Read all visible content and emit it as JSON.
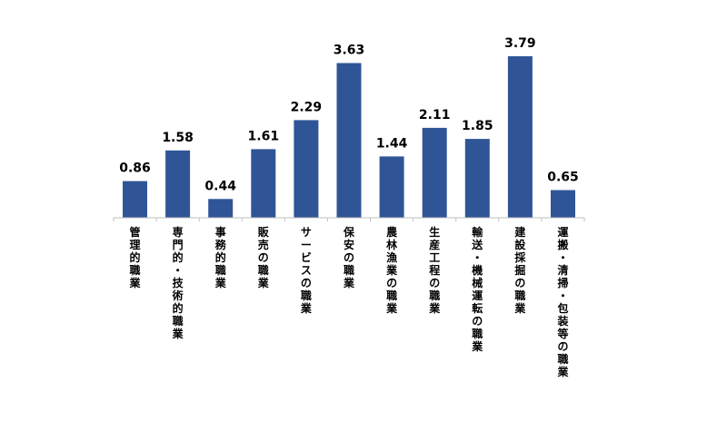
{
  "chart_data": {
    "type": "bar",
    "categories": [
      "管理的職業",
      "専門的・技術的職業",
      "事務的職業",
      "販売の職業",
      "サービスの職業",
      "保安の職業",
      "農林漁業の職業",
      "生産工程の職業",
      "輸送・機械運転の職業",
      "建設採掘の職業",
      "運搬・清掃・包装等の職業"
    ],
    "values": [
      0.86,
      1.58,
      0.44,
      1.61,
      2.29,
      3.63,
      1.44,
      2.11,
      1.85,
      3.79,
      0.65
    ],
    "value_labels": [
      "0.86",
      "1.58",
      "0.44",
      "1.61",
      "2.29",
      "3.63",
      "1.44",
      "2.11",
      "1.85",
      "3.79",
      "0.65"
    ],
    "ylim": [
      0,
      4
    ],
    "grid": false,
    "bar_color": "#2f5597",
    "axis_color": "#bfbfbf"
  }
}
